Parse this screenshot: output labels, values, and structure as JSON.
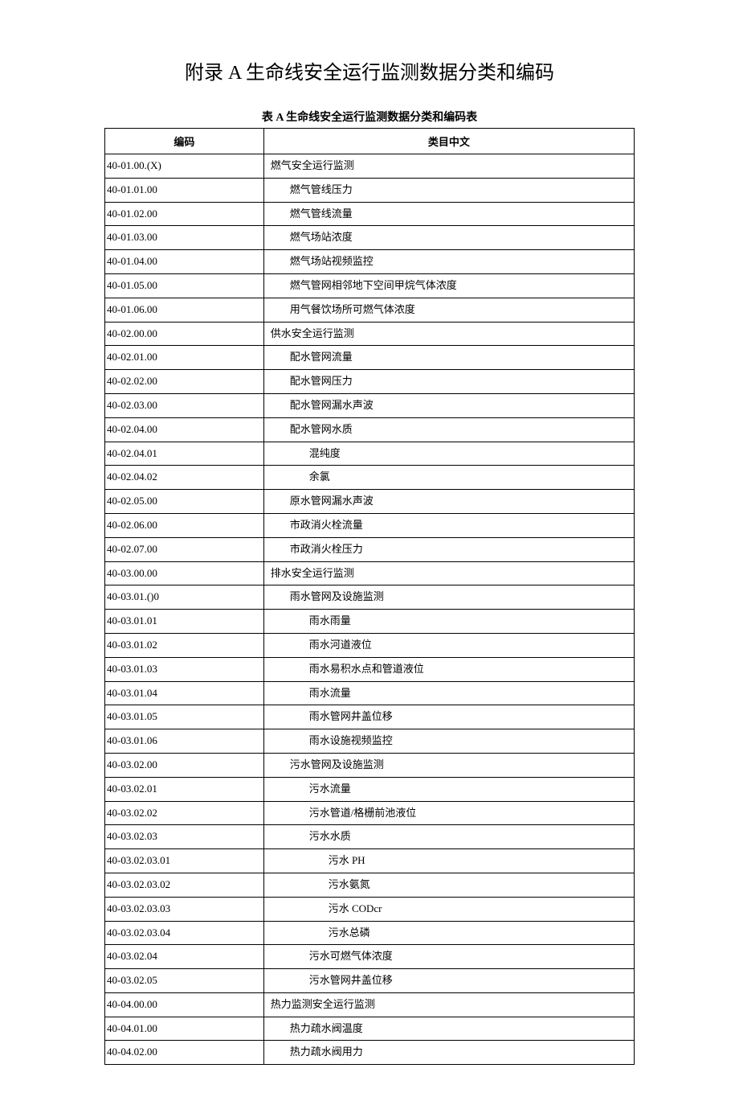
{
  "title": "附录 A 生命线安全运行监测数据分类和编码",
  "subtitle": "表 A 生命线安全运行监测数据分类和编码表",
  "headers": {
    "code": "编码",
    "name": "类目中文"
  },
  "rows": [
    {
      "code": "40-01.00.(X)",
      "name": "燃气安全运行监测",
      "indent": 0
    },
    {
      "code": "40-01.01.00",
      "name": "燃气管线压力",
      "indent": 1
    },
    {
      "code": "40-01.02.00",
      "name": "燃气管线流量",
      "indent": 1
    },
    {
      "code": "40-01.03.00",
      "name": "燃气场站浓度",
      "indent": 1
    },
    {
      "code": "40-01.04.00",
      "name": "燃气场站视频监控",
      "indent": 1
    },
    {
      "code": "40-01.05.00",
      "name": "燃气管网相邻地下空间甲烷气体浓度",
      "indent": 1
    },
    {
      "code": "40-01.06.00",
      "name": "用气餐饮场所可燃气体浓度",
      "indent": 1
    },
    {
      "code": "40-02.00.00",
      "name": "供水安全运行监测",
      "indent": 0
    },
    {
      "code": "40-02.01.00",
      "name": "配水管网流量",
      "indent": 1
    },
    {
      "code": "40-02.02.00",
      "name": "配水管网压力",
      "indent": 1
    },
    {
      "code": "40-02.03.00",
      "name": "配水管网漏水声波",
      "indent": 1
    },
    {
      "code": "40-02.04.00",
      "name": "配水管网水质",
      "indent": 1
    },
    {
      "code": "40-02.04.01",
      "name": "混纯度",
      "indent": 2
    },
    {
      "code": "40-02.04.02",
      "name": "余氯",
      "indent": 2
    },
    {
      "code": "40-02.05.00",
      "name": "原水管网漏水声波",
      "indent": 1
    },
    {
      "code": "40-02.06.00",
      "name": "市政消火栓流量",
      "indent": 1
    },
    {
      "code": "40-02.07.00",
      "name": "市政消火栓压力",
      "indent": 1
    },
    {
      "code": "40-03.00.00",
      "name": "排水安全运行监测",
      "indent": 0
    },
    {
      "code": "40-03.01.()0",
      "name": "雨水管网及设施监测",
      "indent": 1
    },
    {
      "code": "40-03.01.01",
      "name": "雨水雨量",
      "indent": 2
    },
    {
      "code": "40-03.01.02",
      "name": "雨水河道液位",
      "indent": 2
    },
    {
      "code": "40-03.01.03",
      "name": "雨水易积水点和管道液位",
      "indent": 2
    },
    {
      "code": "40-03.01.04",
      "name": "雨水流量",
      "indent": 2
    },
    {
      "code": "40-03.01.05",
      "name": "雨水管网井盖位移",
      "indent": 2
    },
    {
      "code": "40-03.01.06",
      "name": "雨水设施视频监控",
      "indent": 2
    },
    {
      "code": "40-03.02.00",
      "name": "污水管网及设施监测",
      "indent": 1
    },
    {
      "code": "40-03.02.01",
      "name": "污水流量",
      "indent": 2
    },
    {
      "code": "40-03.02.02",
      "name": "污水管道/格栅前池液位",
      "indent": 2
    },
    {
      "code": "40-03.02.03",
      "name": "污水水质",
      "indent": 2
    },
    {
      "code": "40-03.02.03.01",
      "name": "污水 PH",
      "indent": 3
    },
    {
      "code": "40-03.02.03.02",
      "name": "污水氨氮",
      "indent": 3
    },
    {
      "code": "40-03.02.03.03",
      "name": "污水 CODcr",
      "indent": 3
    },
    {
      "code": "40-03.02.03.04",
      "name": "污水总磷",
      "indent": 3
    },
    {
      "code": "40-03.02.04",
      "name": "污水可燃气体浓度",
      "indent": 2
    },
    {
      "code": "40-03.02.05",
      "name": "污水管网井盖位移",
      "indent": 2
    },
    {
      "code": "40-04.00.00",
      "name": "热力监测安全运行监测",
      "indent": 0
    },
    {
      "code": "40-04.01.00",
      "name": "热力疏水阀温度",
      "indent": 1
    },
    {
      "code": "40-04.02.00",
      "name": "热力疏水阀用力",
      "indent": 1
    }
  ]
}
